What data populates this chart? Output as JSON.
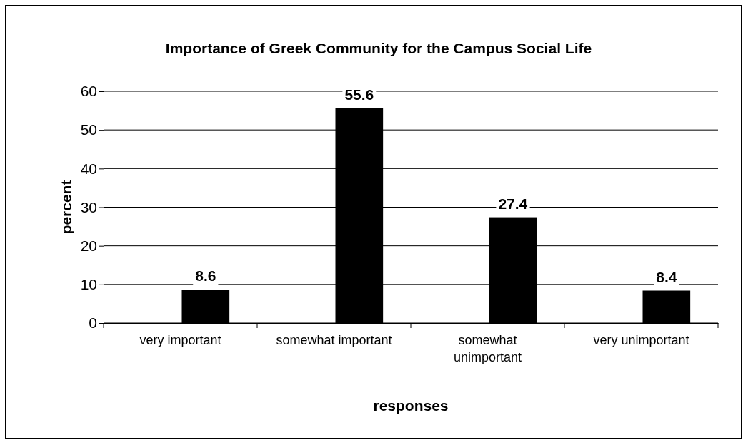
{
  "chart_data": {
    "type": "bar",
    "title": "Importance of Greek Community for the Campus Social Life",
    "xlabel": "responses",
    "ylabel": "percent",
    "categories": [
      "very important",
      "somewhat important",
      "somewhat unimportant",
      "very unimportant"
    ],
    "values": [
      8.6,
      55.6,
      27.4,
      8.4
    ],
    "color": "#000000",
    "ylim": [
      0,
      60
    ],
    "yticks": [
      0,
      10,
      20,
      30,
      40,
      50,
      60
    ],
    "grid": "y",
    "data_labels": true
  }
}
